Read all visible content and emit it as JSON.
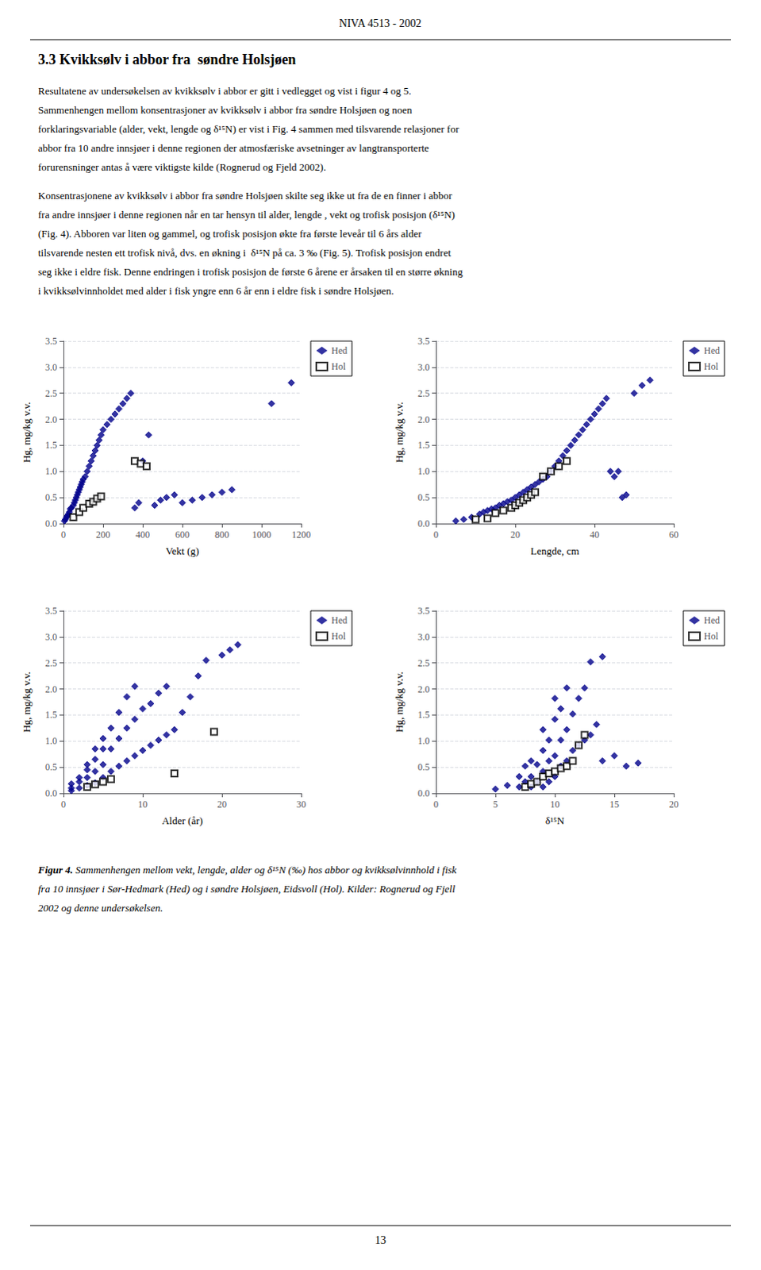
{
  "header": "NIVA 4513 - 2002",
  "section_title": "3.3 Kvikksølv i abbor fra  søndre Holsjøen",
  "paragraphs": [
    [
      "Resultatene av undersøkelsen av kvikksølv i abbor er gitt i vedlegget og vist i figur 4 og 5.",
      "Sammenhengen mellom konsentrasjoner av kvikksølv i abbor fra søndre Holsjøen og noen",
      "forklaringsvariable (alder, vekt, lengde og δ¹⁵N) er vist i Fig. 4 sammen med tilsvarende relasjoner for",
      "abbor fra 10 andre innsjøer i denne regionen der atmosfæriske avsetninger av langtransporterte",
      "forurensninger antas å være viktigste kilde (Rognerud og Fjeld 2002)."
    ],
    [
      "Konsentrasjonene av kvikksølv i abbor fra søndre Holsjøen skilte seg ikke ut fra de en finner i abbor",
      "fra andre innsjøer i denne regionen når en tar hensyn til alder, lengde , vekt og trofisk posisjon (δ¹⁵N)",
      "(Fig. 4). Abboren var liten og gammel, og trofisk posisjon økte fra første leveår til 6 års alder",
      "tilsvarende nesten ett trofisk nivå, dvs. en økning i  δ¹⁵N på ca. 3 ‰ (Fig. 5). Trofisk posisjon endret",
      "seg ikke i eldre fisk. Denne endringen i trofisk posisjon de første 6 årene er årsaken til en større økning",
      "i kvikksølvinnholdet med alder i fisk yngre enn 6 år enn i eldre fisk i søndre Holsjøen."
    ]
  ],
  "caption": [
    "Figur 4.",
    " Sammenhengen mellom vekt, lengde, alder og δ¹⁵N (‰) hos abbor og kvikksølvinnhold i fisk",
    "fra 10 innsjøer i Sør-Hedmark (Hed) og i søndre Holsjøen, Eidsvoll (Hol). Kilder: Rognerud og Fjell",
    "2002 og denne undersøkelsen."
  ],
  "page_number": "13",
  "chart_data": [
    {
      "type": "scatter",
      "xlabel": "Vekt (g)",
      "ylabel": "Hg, mg/kg v.v.",
      "xlim": [
        0,
        1200
      ],
      "ylim": [
        0,
        3.5
      ],
      "xticks": [
        0,
        200,
        400,
        600,
        800,
        1000,
        1200
      ],
      "yticks": [
        {
          "value": 0,
          "label": "0.0"
        },
        0.5,
        {
          "value": 1,
          "label": "1.0"
        },
        1.5,
        {
          "value": 2,
          "label": "2.0"
        },
        2.5,
        {
          "value": 3,
          "label": "3.0"
        },
        3.5
      ],
      "grid": "y",
      "legend": "right",
      "series": [
        {
          "name": "Hed",
          "color": "#00008B",
          "marker": "diamond",
          "x": [
            5,
            10,
            15,
            20,
            25,
            30,
            35,
            40,
            50,
            55,
            60,
            65,
            70,
            75,
            80,
            85,
            90,
            95,
            100,
            110,
            120,
            130,
            140,
            150,
            160,
            170,
            180,
            190,
            200,
            220,
            240,
            260,
            280,
            300,
            320,
            340,
            360,
            380,
            400,
            430,
            460,
            490,
            520,
            560,
            600,
            650,
            700,
            750,
            800,
            850,
            1050,
            1150
          ],
          "values": [
            0.05,
            0.08,
            0.12,
            0.15,
            0.18,
            0.22,
            0.28,
            0.3,
            0.35,
            0.4,
            0.45,
            0.5,
            0.55,
            0.6,
            0.65,
            0.7,
            0.75,
            0.8,
            0.85,
            0.9,
            1.0,
            1.1,
            1.2,
            1.3,
            1.4,
            1.5,
            1.6,
            1.7,
            1.8,
            1.9,
            2.0,
            2.1,
            2.2,
            2.3,
            2.4,
            2.5,
            0.3,
            0.4,
            1.2,
            1.7,
            0.35,
            0.45,
            0.5,
            0.55,
            0.4,
            0.45,
            0.5,
            0.55,
            0.6,
            0.65,
            2.3,
            2.7
          ]
        },
        {
          "name": "Hol",
          "color": "#000000",
          "marker": "open-square",
          "x": [
            50,
            80,
            100,
            130,
            150,
            170,
            190,
            360,
            390,
            420
          ],
          "values": [
            0.12,
            0.22,
            0.3,
            0.38,
            0.42,
            0.48,
            0.52,
            1.2,
            1.15,
            1.1
          ]
        }
      ]
    },
    {
      "type": "scatter",
      "xlabel": "Lengde, cm",
      "ylabel": "Hg, mg/kg v.v.",
      "xlim": [
        0,
        60
      ],
      "ylim": [
        0,
        3.5
      ],
      "xticks": [
        0,
        20,
        40,
        60
      ],
      "yticks": [
        {
          "value": 0,
          "label": "0.0"
        },
        0.5,
        {
          "value": 1,
          "label": "1.0"
        },
        1.5,
        {
          "value": 2,
          "label": "2.0"
        },
        2.5,
        {
          "value": 3,
          "label": "3.0"
        },
        3.5
      ],
      "grid": "y",
      "legend": "right",
      "series": [
        {
          "name": "Hed",
          "color": "#00008B",
          "marker": "diamond",
          "x": [
            5,
            7,
            9,
            11,
            12,
            13,
            14,
            15,
            16,
            17,
            18,
            19,
            20,
            21,
            22,
            23,
            24,
            25,
            26,
            27,
            28,
            29,
            30,
            31,
            32,
            33,
            34,
            35,
            36,
            37,
            38,
            39,
            40,
            41,
            42,
            43,
            44,
            45,
            46,
            47,
            48,
            50,
            52,
            54
          ],
          "values": [
            0.05,
            0.08,
            0.12,
            0.18,
            0.22,
            0.25,
            0.28,
            0.3,
            0.35,
            0.38,
            0.42,
            0.45,
            0.5,
            0.55,
            0.6,
            0.65,
            0.7,
            0.75,
            0.8,
            0.85,
            0.9,
            1.0,
            1.1,
            1.2,
            1.3,
            1.4,
            1.5,
            1.6,
            1.7,
            1.8,
            1.9,
            2.0,
            2.1,
            2.2,
            2.3,
            2.4,
            1.0,
            0.9,
            1.0,
            0.5,
            0.55,
            2.5,
            2.65,
            2.75
          ]
        },
        {
          "name": "Hol",
          "color": "#000000",
          "marker": "open-square",
          "x": [
            10,
            13,
            15,
            17,
            19,
            20,
            21,
            22,
            23,
            24,
            25,
            27,
            29,
            31,
            33
          ],
          "values": [
            0.08,
            0.1,
            0.2,
            0.25,
            0.3,
            0.35,
            0.4,
            0.45,
            0.5,
            0.55,
            0.6,
            0.9,
            1.0,
            1.1,
            1.2
          ]
        }
      ]
    },
    {
      "type": "scatter",
      "xlabel": "Alder (år)",
      "ylabel": "Hg, mg/kg v.v.",
      "xlim": [
        0,
        30
      ],
      "ylim": [
        0,
        3.5
      ],
      "xticks": [
        0,
        10,
        20,
        30
      ],
      "yticks": [
        {
          "value": 0,
          "label": "0.0"
        },
        0.5,
        {
          "value": 1,
          "label": "1.0"
        },
        1.5,
        {
          "value": 2,
          "label": "2.0"
        },
        2.5,
        {
          "value": 3,
          "label": "3.0"
        },
        3.5
      ],
      "grid": "y",
      "legend": "right",
      "series": [
        {
          "name": "Hed",
          "color": "#00008B",
          "marker": "diamond",
          "x": [
            1,
            1,
            1,
            2,
            2,
            2,
            3,
            3,
            3,
            3,
            4,
            4,
            4,
            4,
            5,
            5,
            5,
            5,
            6,
            6,
            6,
            7,
            7,
            7,
            8,
            8,
            8,
            9,
            9,
            9,
            10,
            10,
            11,
            11,
            12,
            12,
            13,
            13,
            14,
            15,
            16,
            17,
            18,
            20,
            21,
            22
          ],
          "values": [
            0.05,
            0.1,
            0.18,
            0.1,
            0.22,
            0.3,
            0.15,
            0.3,
            0.45,
            0.55,
            0.2,
            0.42,
            0.65,
            0.85,
            0.3,
            0.55,
            0.85,
            1.05,
            0.42,
            0.85,
            1.25,
            0.52,
            1.05,
            1.55,
            0.62,
            1.25,
            1.85,
            0.72,
            1.42,
            2.05,
            0.82,
            1.62,
            0.92,
            1.72,
            1.02,
            1.92,
            1.12,
            2.05,
            1.22,
            1.55,
            1.85,
            2.25,
            2.55,
            2.65,
            2.75,
            2.85
          ]
        },
        {
          "name": "Hol",
          "color": "#000000",
          "marker": "open-square",
          "x": [
            3,
            4,
            5,
            6,
            14,
            19
          ],
          "values": [
            0.12,
            0.17,
            0.22,
            0.27,
            0.38,
            1.18
          ]
        }
      ]
    },
    {
      "type": "scatter",
      "xlabel": "δ¹⁵N",
      "ylabel": "Hg, mg/kg v.v.",
      "xlim": [
        0,
        20
      ],
      "ylim": [
        0,
        3.5
      ],
      "xticks": [
        0,
        5,
        10,
        15,
        20
      ],
      "yticks": [
        {
          "value": 0,
          "label": "0.0"
        },
        0.5,
        {
          "value": 1,
          "label": "1.0"
        },
        1.5,
        {
          "value": 2,
          "label": "2.0"
        },
        2.5,
        {
          "value": 3,
          "label": "3.0"
        },
        3.5
      ],
      "grid": "y",
      "legend": "right",
      "series": [
        {
          "name": "Hed",
          "color": "#00008B",
          "marker": "diamond",
          "x": [
            5,
            6,
            7,
            7,
            7.5,
            7.5,
            8,
            8,
            8,
            8.5,
            8.5,
            9,
            9,
            9,
            9,
            9.5,
            9.5,
            9.5,
            10,
            10,
            10,
            10,
            10.5,
            10.5,
            10.5,
            11,
            11,
            11,
            11.5,
            11.5,
            12,
            12,
            12.5,
            12.5,
            13,
            13,
            13.5,
            14,
            14,
            15,
            16,
            17
          ],
          "values": [
            0.08,
            0.15,
            0.12,
            0.32,
            0.22,
            0.52,
            0.12,
            0.32,
            0.62,
            0.22,
            0.55,
            0.12,
            0.42,
            0.82,
            1.22,
            0.22,
            0.62,
            1.02,
            0.32,
            0.72,
            1.42,
            1.82,
            0.52,
            1.02,
            1.62,
            0.62,
            1.22,
            2.02,
            0.82,
            1.52,
            0.92,
            1.82,
            1.02,
            2.02,
            1.12,
            2.52,
            1.32,
            0.62,
            2.62,
            0.72,
            0.52,
            0.58
          ]
        },
        {
          "name": "Hol",
          "color": "#000000",
          "marker": "open-square",
          "x": [
            7.5,
            8,
            8.5,
            9,
            9.5,
            10,
            10.5,
            11,
            11.5,
            12,
            12.5
          ],
          "values": [
            0.12,
            0.18,
            0.22,
            0.32,
            0.38,
            0.42,
            0.48,
            0.52,
            0.62,
            0.92,
            1.12
          ]
        }
      ]
    }
  ]
}
